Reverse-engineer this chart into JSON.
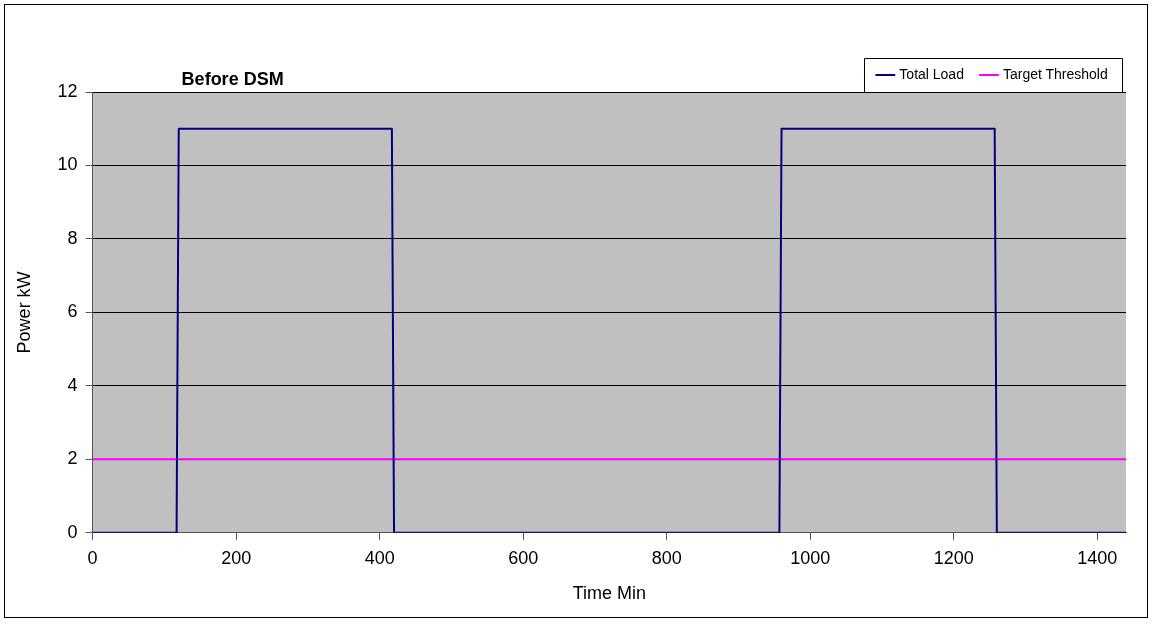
{
  "chart_data": {
    "type": "line",
    "title": "Before DSM",
    "xlabel": "Time Min",
    "ylabel": "Power kW",
    "xlim": [
      0,
      1440
    ],
    "xticks": [
      0,
      200,
      400,
      600,
      800,
      1000,
      1200,
      1400
    ],
    "ylim": [
      0,
      12
    ],
    "yticks": [
      0,
      2,
      4,
      6,
      8,
      10,
      12
    ],
    "grid": "y",
    "legend": "top right",
    "marker": "none",
    "line_style": "solid",
    "series": [
      {
        "name": "Total Load",
        "color": "#000080",
        "x": [
          0,
          117,
          120,
          417,
          420,
          957,
          960,
          1257,
          1260,
          1440
        ],
        "values": [
          0,
          0,
          11,
          11,
          0,
          0,
          11,
          11,
          0,
          0
        ]
      },
      {
        "name": "Target Threshold",
        "color": "#ff00ff",
        "x": [
          0,
          1440
        ],
        "values": [
          2,
          2
        ]
      }
    ]
  }
}
